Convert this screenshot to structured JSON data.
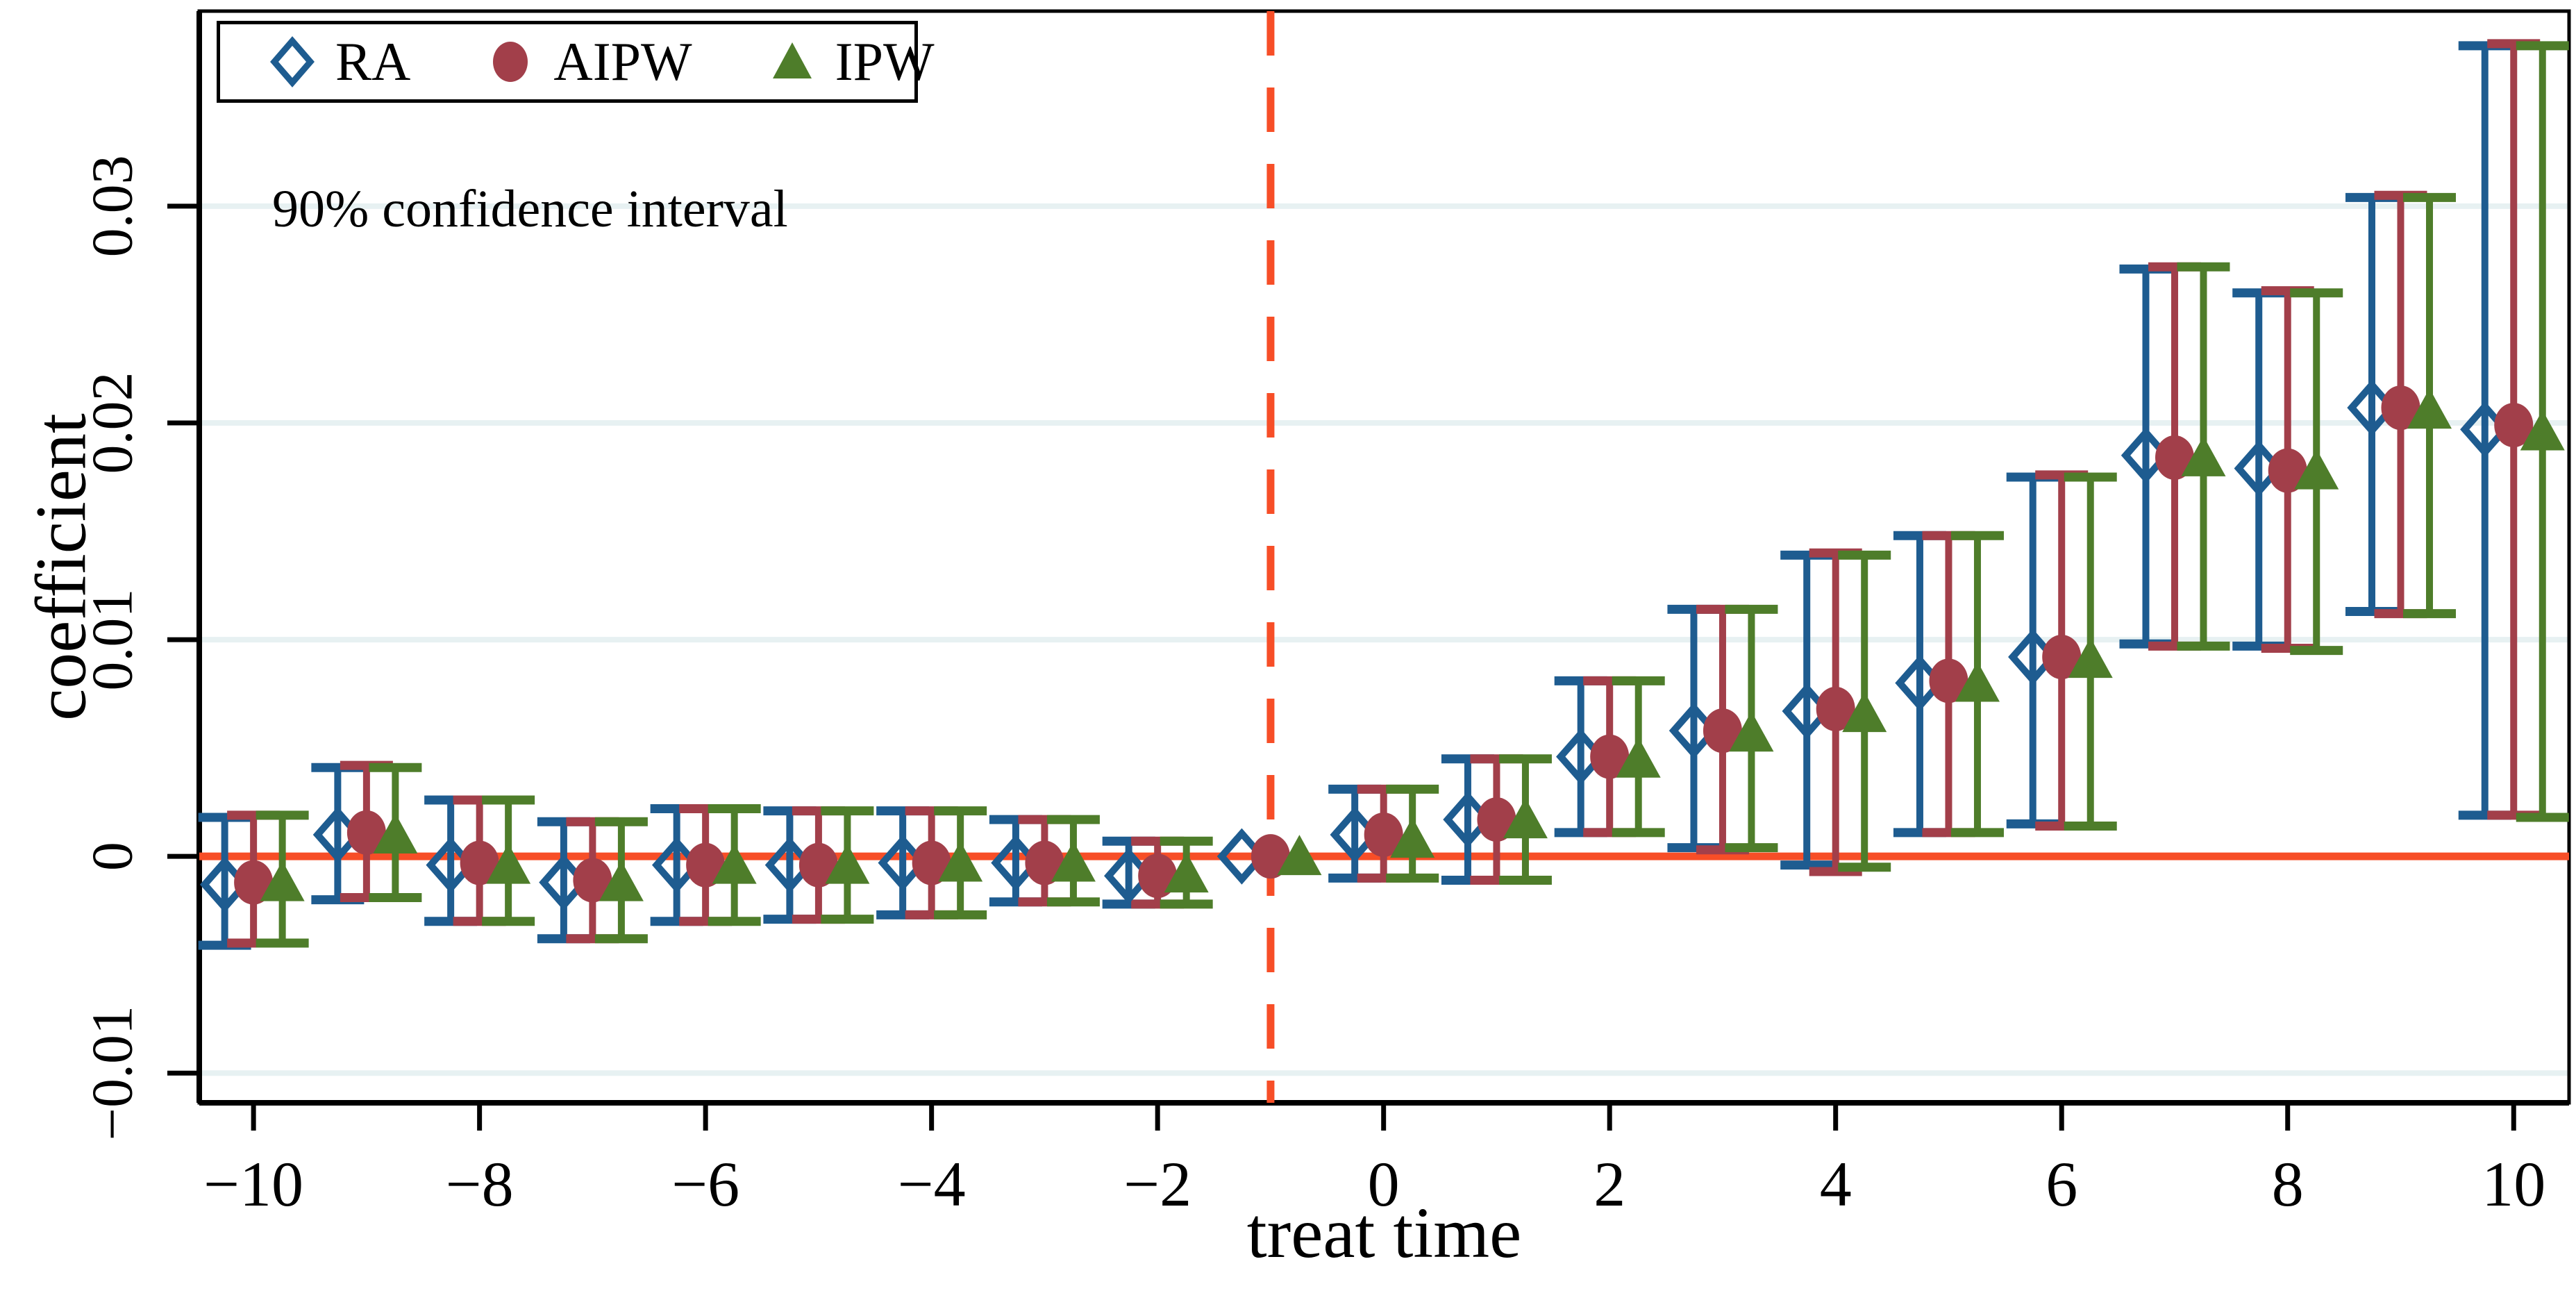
{
  "annotation": "90% confidence interval",
  "legend": {
    "items": [
      {
        "id": "ra",
        "label": "RA",
        "marker": "hollow-diamond"
      },
      {
        "id": "aipw",
        "label": "AIPW",
        "marker": "filled-circle"
      },
      {
        "id": "ipw",
        "label": "IPW",
        "marker": "filled-triangle"
      }
    ]
  },
  "colors": {
    "ra": "#1e5c90",
    "aipw": "#a23f4a",
    "ipw": "#4e7d2a",
    "zero_line": "#f74e27",
    "vline": "#f74e27",
    "grid": "#e7f1f2",
    "axis": "#000000",
    "background": "#ffffff"
  },
  "chart_data": {
    "type": "scatter",
    "subtype": "event-study-errorbar",
    "title": "",
    "xlabel": "treat time",
    "ylabel": "coefficient",
    "confidence_level": "90%",
    "x_ticks": [
      -10,
      -8,
      -6,
      -4,
      -2,
      0,
      2,
      4,
      6,
      8,
      10
    ],
    "y_ticks": [
      -0.01,
      0,
      0.01,
      0.02,
      0.03
    ],
    "xlim": [
      -10.48,
      10.49
    ],
    "ylim": [
      -0.01137,
      0.039
    ],
    "grid": true,
    "legend_position": "top-left-inside",
    "zero_line_y": 0,
    "vline_x": -1,
    "reference_time": -1,
    "series_t_offset": {
      "ra": -0.255,
      "aipw": 0,
      "ipw": 0.255
    },
    "points": [
      {
        "t": -10,
        "ra": {
          "est": -0.0013,
          "lo": -0.0041,
          "hi": 0.0018
        },
        "aipw": {
          "est": -0.0012,
          "lo": -0.004,
          "hi": 0.0019
        },
        "ipw": {
          "est": -0.0012,
          "lo": -0.004,
          "hi": 0.0019
        }
      },
      {
        "t": -9,
        "ra": {
          "est": 0.001,
          "lo": -0.002,
          "hi": 0.0041
        },
        "aipw": {
          "est": 0.0011,
          "lo": -0.0019,
          "hi": 0.0042
        },
        "ipw": {
          "est": 0.001,
          "lo": -0.0019,
          "hi": 0.0041
        }
      },
      {
        "t": -8,
        "ra": {
          "est": -0.0004,
          "lo": -0.003,
          "hi": 0.0026
        },
        "aipw": {
          "est": -0.0003,
          "lo": -0.003,
          "hi": 0.0026
        },
        "ipw": {
          "est": -0.0004,
          "lo": -0.003,
          "hi": 0.0026
        }
      },
      {
        "t": -7,
        "ra": {
          "est": -0.0012,
          "lo": -0.0038,
          "hi": 0.0016
        },
        "aipw": {
          "est": -0.0011,
          "lo": -0.0038,
          "hi": 0.0016
        },
        "ipw": {
          "est": -0.0012,
          "lo": -0.0038,
          "hi": 0.0016
        }
      },
      {
        "t": -6,
        "ra": {
          "est": -0.0004,
          "lo": -0.003,
          "hi": 0.0022
        },
        "aipw": {
          "est": -0.0004,
          "lo": -0.003,
          "hi": 0.0022
        },
        "ipw": {
          "est": -0.0004,
          "lo": -0.003,
          "hi": 0.0022
        }
      },
      {
        "t": -5,
        "ra": {
          "est": -0.0004,
          "lo": -0.0029,
          "hi": 0.0021
        },
        "aipw": {
          "est": -0.0004,
          "lo": -0.0029,
          "hi": 0.0021
        },
        "ipw": {
          "est": -0.0004,
          "lo": -0.0029,
          "hi": 0.0021
        }
      },
      {
        "t": -4,
        "ra": {
          "est": -0.0003,
          "lo": -0.0027,
          "hi": 0.0021
        },
        "aipw": {
          "est": -0.0003,
          "lo": -0.0027,
          "hi": 0.0021
        },
        "ipw": {
          "est": -0.0003,
          "lo": -0.0027,
          "hi": 0.0021
        }
      },
      {
        "t": -3,
        "ra": {
          "est": -0.0003,
          "lo": -0.0021,
          "hi": 0.0017
        },
        "aipw": {
          "est": -0.0003,
          "lo": -0.0021,
          "hi": 0.0017
        },
        "ipw": {
          "est": -0.0003,
          "lo": -0.0021,
          "hi": 0.0017
        }
      },
      {
        "t": -2,
        "ra": {
          "est": -0.0009,
          "lo": -0.0022,
          "hi": 0.0007
        },
        "aipw": {
          "est": -0.0009,
          "lo": -0.0022,
          "hi": 0.0007
        },
        "ipw": {
          "est": -0.0008,
          "lo": -0.0022,
          "hi": 0.0007
        }
      },
      {
        "t": -1,
        "ra": {
          "est": 0,
          "lo": null,
          "hi": null
        },
        "aipw": {
          "est": 0,
          "lo": null,
          "hi": null
        },
        "ipw": {
          "est": 0,
          "lo": null,
          "hi": null
        }
      },
      {
        "t": 0,
        "ra": {
          "est": 0.001,
          "lo": -0.001,
          "hi": 0.0031
        },
        "aipw": {
          "est": 0.001,
          "lo": -0.001,
          "hi": 0.0031
        },
        "ipw": {
          "est": 0.0008,
          "lo": -0.001,
          "hi": 0.0031
        }
      },
      {
        "t": 1,
        "ra": {
          "est": 0.0017,
          "lo": -0.0011,
          "hi": 0.0045
        },
        "aipw": {
          "est": 0.0017,
          "lo": -0.0011,
          "hi": 0.0045
        },
        "ipw": {
          "est": 0.0017,
          "lo": -0.0011,
          "hi": 0.0045
        }
      },
      {
        "t": 2,
        "ra": {
          "est": 0.0046,
          "lo": 0.0011,
          "hi": 0.0081
        },
        "aipw": {
          "est": 0.0046,
          "lo": 0.0011,
          "hi": 0.0081
        },
        "ipw": {
          "est": 0.0045,
          "lo": 0.0011,
          "hi": 0.0081
        }
      },
      {
        "t": 3,
        "ra": {
          "est": 0.0058,
          "lo": 0.0004,
          "hi": 0.0114
        },
        "aipw": {
          "est": 0.0058,
          "lo": 0.0003,
          "hi": 0.0114
        },
        "ipw": {
          "est": 0.0057,
          "lo": 0.0004,
          "hi": 0.0114
        }
      },
      {
        "t": 4,
        "ra": {
          "est": 0.0067,
          "lo": -0.0004,
          "hi": 0.0139
        },
        "aipw": {
          "est": 0.0068,
          "lo": -0.0007,
          "hi": 0.014
        },
        "ipw": {
          "est": 0.0066,
          "lo": -0.0005,
          "hi": 0.0139
        }
      },
      {
        "t": 5,
        "ra": {
          "est": 0.008,
          "lo": 0.0011,
          "hi": 0.0148
        },
        "aipw": {
          "est": 0.0081,
          "lo": 0.0011,
          "hi": 0.0148
        },
        "ipw": {
          "est": 0.008,
          "lo": 0.0011,
          "hi": 0.0148
        }
      },
      {
        "t": 6,
        "ra": {
          "est": 0.0092,
          "lo": 0.0015,
          "hi": 0.0175
        },
        "aipw": {
          "est": 0.0092,
          "lo": 0.0014,
          "hi": 0.0176
        },
        "ipw": {
          "est": 0.0091,
          "lo": 0.0014,
          "hi": 0.0175
        }
      },
      {
        "t": 7,
        "ra": {
          "est": 0.0185,
          "lo": 0.0098,
          "hi": 0.0271
        },
        "aipw": {
          "est": 0.0184,
          "lo": 0.0097,
          "hi": 0.0272
        },
        "ipw": {
          "est": 0.0184,
          "lo": 0.0097,
          "hi": 0.0272
        }
      },
      {
        "t": 8,
        "ra": {
          "est": 0.0179,
          "lo": 0.0097,
          "hi": 0.026
        },
        "aipw": {
          "est": 0.0178,
          "lo": 0.0096,
          "hi": 0.0261
        },
        "ipw": {
          "est": 0.0178,
          "lo": 0.0095,
          "hi": 0.026
        }
      },
      {
        "t": 9,
        "ra": {
          "est": 0.0207,
          "lo": 0.0113,
          "hi": 0.0304
        },
        "aipw": {
          "est": 0.0207,
          "lo": 0.0112,
          "hi": 0.0305
        },
        "ipw": {
          "est": 0.0206,
          "lo": 0.0112,
          "hi": 0.0304
        }
      },
      {
        "t": 10,
        "ra": {
          "est": 0.0197,
          "lo": 0.0019,
          "hi": 0.0374
        },
        "aipw": {
          "est": 0.0199,
          "lo": 0.0019,
          "hi": 0.0375
        },
        "ipw": {
          "est": 0.0196,
          "lo": 0.0018,
          "hi": 0.0374
        }
      }
    ]
  }
}
